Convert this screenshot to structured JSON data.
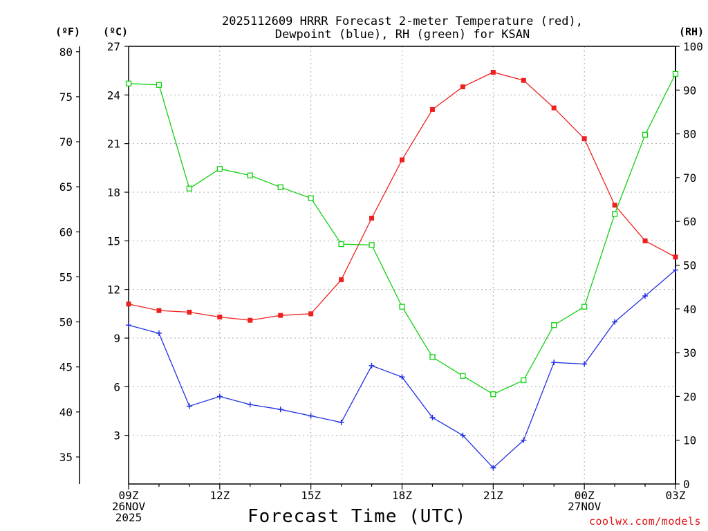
{
  "chart_data": {
    "type": "line",
    "title": "2025112609 HRRR Forecast 2-meter Temperature (red),",
    "subtitle": "Dewpoint (blue), RH (green) for KSAN",
    "xlabel": "Forecast Time (UTC)",
    "credit": "coolwx.com/models",
    "axes": {
      "left_f_label": "(ºF)",
      "left_c_label": "(ºC)",
      "right_label": "(RH)",
      "ylim_c": [
        0,
        27
      ],
      "ylim_rh": [
        0,
        100
      ],
      "ylim_f": [
        32,
        80.6
      ],
      "yticks_c": [
        "3",
        "6",
        "9",
        "12",
        "15",
        "18",
        "21",
        "24",
        "27"
      ],
      "yticks_c_values": [
        3,
        6,
        9,
        12,
        15,
        18,
        21,
        24,
        27
      ],
      "yticks_f": [
        "35",
        "40",
        "45",
        "50",
        "55",
        "60",
        "65",
        "70",
        "75",
        "80"
      ],
      "yticks_f_values": [
        35,
        40,
        45,
        50,
        55,
        60,
        65,
        70,
        75,
        80
      ],
      "yticks_rh": [
        "0",
        "10",
        "20",
        "30",
        "40",
        "50",
        "60",
        "70",
        "80",
        "90",
        "100"
      ],
      "yticks_rh_values": [
        0,
        10,
        20,
        30,
        40,
        50,
        60,
        70,
        80,
        90,
        100
      ]
    },
    "x": {
      "hours": [
        0,
        1,
        2,
        3,
        4,
        5,
        6,
        7,
        8,
        9,
        10,
        11,
        12,
        13,
        14,
        15,
        16,
        17,
        18
      ],
      "tick_hours": [
        0,
        3,
        6,
        9,
        12,
        15,
        18
      ],
      "tick_labels": [
        [
          "09Z",
          "26NOV",
          "2025"
        ],
        [
          "12Z"
        ],
        [
          "15Z"
        ],
        [
          "18Z"
        ],
        [
          "21Z"
        ],
        [
          "00Z",
          "27NOV"
        ],
        [
          "03Z"
        ]
      ]
    },
    "grid": true,
    "series": [
      {
        "name": "Temperature",
        "unit": "C",
        "color": "#ee2020",
        "marker": "filled-square",
        "values": [
          11.1,
          10.7,
          10.6,
          10.3,
          10.1,
          10.4,
          10.5,
          12.6,
          16.4,
          20.0,
          23.1,
          24.5,
          25.4,
          24.9,
          23.2,
          21.3,
          17.2,
          15.0,
          14.0
        ]
      },
      {
        "name": "Dewpoint",
        "unit": "C",
        "color": "#2030e0",
        "marker": "plus",
        "values": [
          9.8,
          9.3,
          4.8,
          5.4,
          4.9,
          4.6,
          4.2,
          3.8,
          7.3,
          6.6,
          4.1,
          3.0,
          1.0,
          2.7,
          7.5,
          7.4,
          10.0,
          11.6,
          13.2
        ]
      },
      {
        "name": "RH",
        "unit": "%",
        "color": "#10d010",
        "marker": "open-square",
        "values": [
          91.5,
          91.2,
          67.5,
          72.0,
          70.5,
          67.8,
          65.3,
          54.8,
          54.6,
          40.5,
          29.0,
          24.7,
          20.5,
          23.7,
          36.3,
          40.5,
          61.7,
          79.8,
          93.7
        ]
      }
    ]
  }
}
